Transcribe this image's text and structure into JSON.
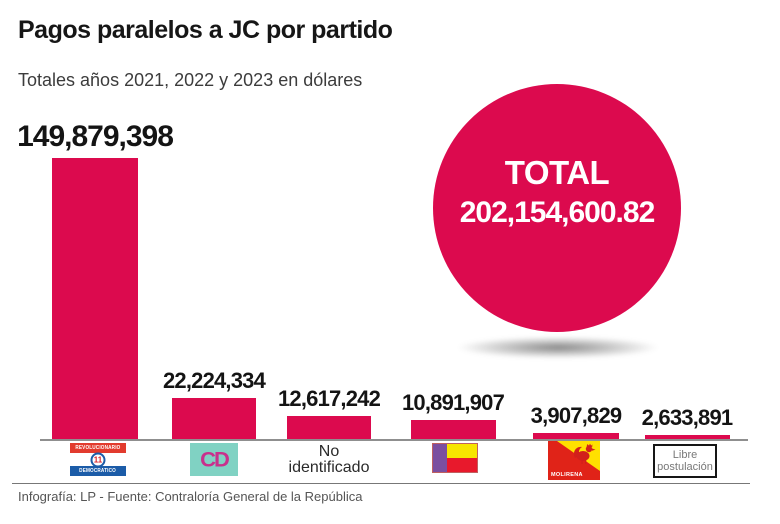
{
  "header": {
    "title": "Pagos paralelos a JC por partido",
    "subtitle": "Totales años 2021, 2022 y 2023 en dólares"
  },
  "total_circle": {
    "label": "TOTAL",
    "value": "202,154,600.82"
  },
  "chart_data": {
    "type": "bar",
    "title": "Pagos paralelos a JC por partido",
    "subtitle": "Totales años 2021, 2022 y 2023 en dólares",
    "unit": "dólares (USD)",
    "total": 202154600.82,
    "categories": [
      "Partido Revolucionario Democrático (PRD)",
      "Cambio Democrático (CD)",
      "No identificado",
      "Partido Panameñista",
      "MOLIRENA",
      "Libre postulación"
    ],
    "values": [
      149879398,
      22224334,
      12617242,
      10891907,
      3907829,
      2633891
    ],
    "value_labels": [
      "149,879,398",
      "22,224,334",
      "12,617,242",
      "10,891,907",
      "3,907,829",
      "2,633,891"
    ],
    "bar_color": "#DC0A4E",
    "ylim": [
      0,
      149879398
    ],
    "grid": false,
    "legend": false
  },
  "party_labels": {
    "prd": {
      "top": "REVOLUCIONARIO",
      "number": "11",
      "bottom": "DEMOCRATICO"
    },
    "cd": {
      "text": "CD"
    },
    "no_identificado": {
      "line1": "No",
      "line2": "identificado"
    },
    "molirena": {
      "text": "MOLIRENA"
    },
    "libre_postulacion": {
      "line1": "Libre",
      "line2": "postulación"
    }
  },
  "footer": {
    "credit": "Infografía: LP - Fuente: Contraloría General de la República"
  },
  "colors": {
    "accent": "#DC0A4E",
    "prd_red": "#E23B2E",
    "prd_blue": "#1C5CA8",
    "cd_teal": "#80D2C3",
    "cd_pink": "#C9308C",
    "panamenista_purple": "#7B4FA0",
    "panamenista_yellow": "#F7E500",
    "panamenista_red": "#E8192C",
    "molirena_red": "#E02318",
    "molirena_yellow": "#FFE000"
  }
}
